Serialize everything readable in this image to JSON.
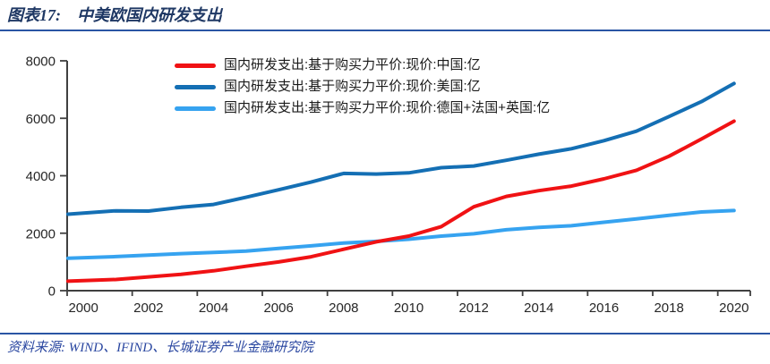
{
  "header": {
    "figure_label": "图表17:",
    "title": "中美欧国内研发支出"
  },
  "footer": {
    "source": "资料来源: WIND、IFIND、长城证券产业金融研究院"
  },
  "colors": {
    "title_navy": "#1F3864",
    "rule_blue": "#2A55A4",
    "source_blue": "#2946A0",
    "axis": "#404040",
    "tick_text": "#262626"
  },
  "chart_data": {
    "type": "line",
    "title": "中美欧国内研发支出",
    "x": [
      2000,
      2001,
      2002,
      2003,
      2004,
      2005,
      2006,
      2007,
      2008,
      2009,
      2010,
      2011,
      2012,
      2013,
      2014,
      2015,
      2016,
      2017,
      2018,
      2019,
      2020
    ],
    "series": [
      {
        "name": "国内研发支出:基于购买力平价:现价:中国:亿",
        "color": "#F01214",
        "values": [
          330,
          390,
          480,
          570,
          690,
          850,
          1000,
          1180,
          1440,
          1700,
          1900,
          2230,
          2920,
          3280,
          3480,
          3640,
          3890,
          4190,
          4680,
          5280,
          5900
        ]
      },
      {
        "name": "国内研发支出:基于购买力平价:现价:美国:亿",
        "color": "#146FB4",
        "values": [
          2660,
          2780,
          2770,
          2900,
          3000,
          3250,
          3510,
          3780,
          4080,
          4060,
          4100,
          4280,
          4340,
          4540,
          4750,
          4940,
          5220,
          5550,
          6060,
          6580,
          7210
        ]
      },
      {
        "name": "国内研发支出:基于购买力平价:现价:德国+法国+英国:亿",
        "color": "#36A3F0",
        "values": [
          1130,
          1185,
          1240,
          1290,
          1330,
          1380,
          1470,
          1560,
          1660,
          1715,
          1790,
          1900,
          1980,
          2120,
          2200,
          2260,
          2380,
          2500,
          2620,
          2740,
          2790
        ]
      }
    ],
    "ylim": [
      0,
      8000
    ],
    "yticks": [
      0,
      2000,
      4000,
      6000,
      8000
    ],
    "xticks": [
      2000,
      2002,
      2004,
      2006,
      2008,
      2010,
      2012,
      2014,
      2016,
      2018,
      2020
    ],
    "grid": false,
    "legend_position": "top-left-inside",
    "line_width": 4
  }
}
